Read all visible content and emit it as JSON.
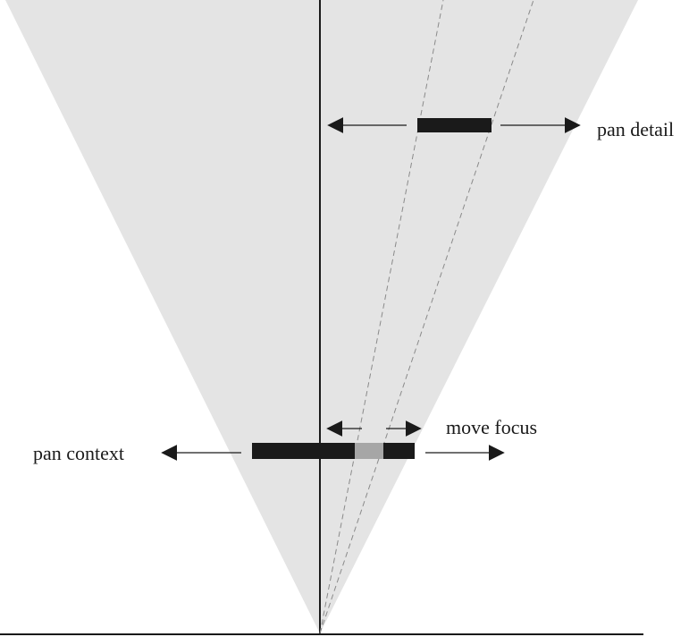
{
  "labels": {
    "pan_detail": "pan detail",
    "move_focus": "move focus",
    "pan_context": "pan context"
  },
  "colors": {
    "cone_fill": "#e4e4e4",
    "ink": "#1a1a1a",
    "focus_highlight": "#a6a6a6",
    "dashed": "#8a8a8a"
  }
}
